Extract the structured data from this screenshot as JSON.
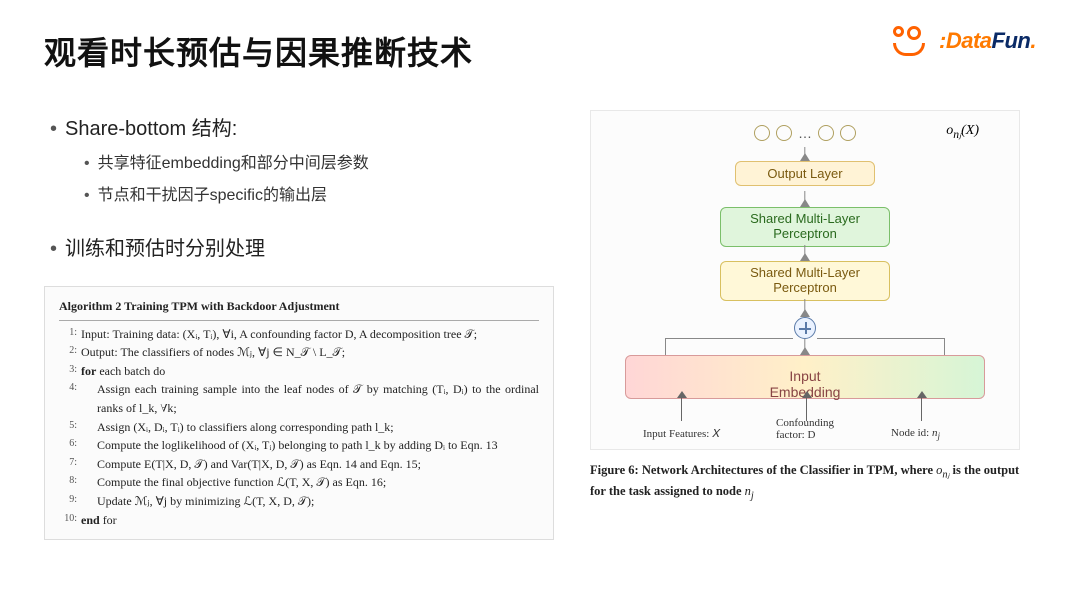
{
  "title": "观看时长预估与因果推断技术",
  "logos": {
    "datafun_d": ":D",
    "datafun_text": "ataFun",
    "datafun_dot": "."
  },
  "bullets": {
    "b1a": "Share-bottom 结构:",
    "b2a": "共享特征embedding和部分中间层参数",
    "b2b": "节点和干扰因子specific的输出层",
    "b1b": "训练和预估时分别处理"
  },
  "algorithm": {
    "title": "Algorithm 2 Training TPM with Backdoor Adjustment",
    "lines": [
      "Input: Training data: (Xᵢ, Tᵢ), ∀i, A confounding factor D, A decomposition tree 𝒯;",
      "Output: The classifiers of nodes ℳⱼ, ∀j ∈ N_𝒯 \\ L_𝒯;",
      "for each batch do",
      "Assign each training sample into the leaf nodes of 𝒯 by matching (Tᵢ, Dᵢ) to the ordinal ranks of l_k, ∀k;",
      "Assign (Xᵢ, Dᵢ, Tᵢ) to classifiers along corresponding path l_k;",
      "Compute the loglikelihood of (Xᵢ, Tᵢ) belonging to path l_k by adding Dᵢ to Eqn. 13",
      "Compute E(T|X, D, 𝒯) and Var(T|X, D, 𝒯) as Eqn. 14 and Eqn. 15;",
      "Compute the final objective function ℒ(T, X, 𝒯) as Eqn. 16;",
      "Update ℳⱼ, ∀j by minimizing ℒ(T, X, D, 𝒯);",
      "end for"
    ],
    "indent": [
      0,
      0,
      0,
      1,
      1,
      1,
      1,
      1,
      1,
      0
    ]
  },
  "diagram": {
    "out_label": "o_{nⱼ}(X)",
    "layers": {
      "output": "Output Layer",
      "mlp1": "Shared Multi-Layer\nPerceptron",
      "mlp2": "Shared Multi-Layer\nPerceptron",
      "embedding": "Input\nEmbedding"
    },
    "inputs": {
      "x": "Input Features: 𝑋",
      "d": "Confounding\nfactor: D",
      "n": "Node id: nⱼ"
    },
    "colors": {
      "output_bg": "#fff3d6",
      "output_border": "#e0c070",
      "mlp1_bg": "#e0f5dc",
      "mlp1_border": "#7bbf6a",
      "mlp2_bg": "#fff8d8",
      "mlp2_border": "#d8c060",
      "emb_grad_from": "#ffd6d6",
      "emb_grad_mid": "#fff0c8",
      "emb_grad_to": "#d6f5d6",
      "arrow": "#888888"
    },
    "caption_bold": "Figure 6: Network Architectures of the Classifier in TPM, where ",
    "caption_mid": "o_{nⱼ}",
    "caption_rest": " is the output for the task assigned to node ",
    "caption_end": "nⱼ"
  }
}
